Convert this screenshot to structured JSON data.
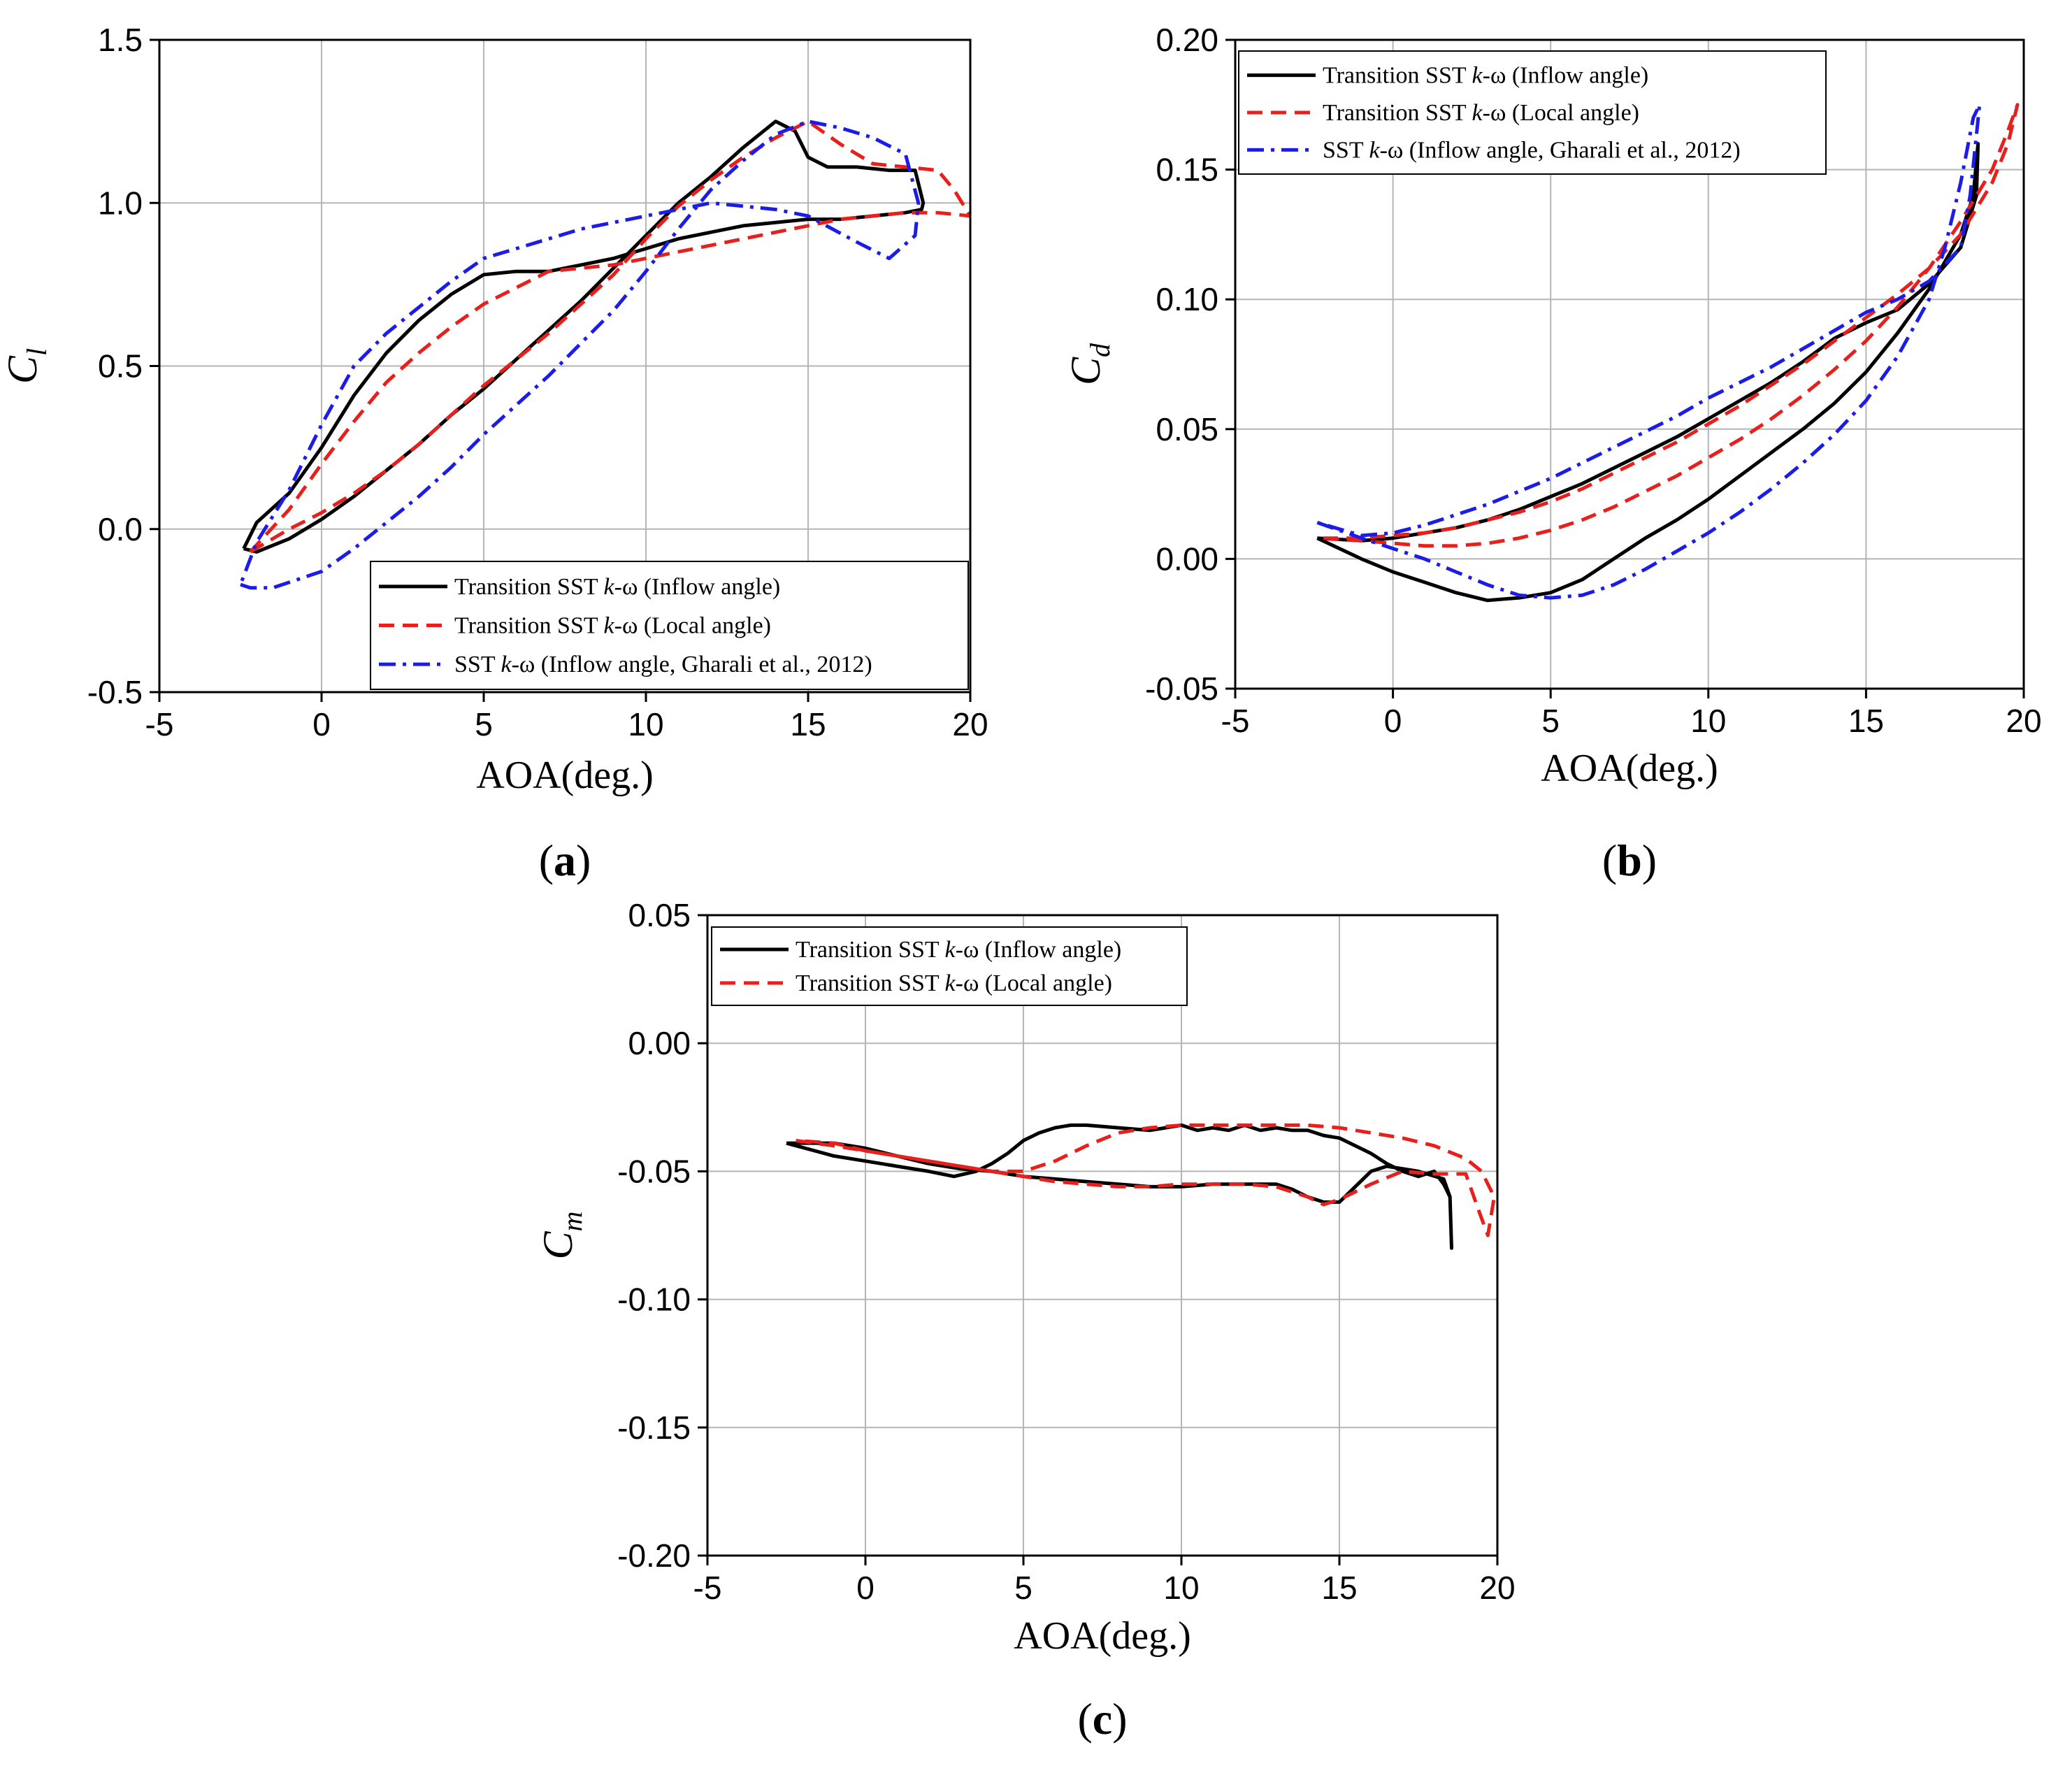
{
  "chart_data": [
    {
      "id": "a",
      "type": "line",
      "panel_label": "a",
      "xlabel": "AOA(deg.)",
      "ylabel": {
        "base": "C",
        "sub": "l"
      },
      "xlim": [
        -5,
        20
      ],
      "ylim": [
        -0.5,
        1.5
      ],
      "xticks": [
        -5,
        0,
        5,
        10,
        15,
        20
      ],
      "yticks": [
        -0.5,
        0.0,
        0.5,
        1.0,
        1.5
      ],
      "xtick_labels": [
        "-5",
        "0",
        "5",
        "10",
        "15",
        "20"
      ],
      "ytick_labels": [
        "-0.5",
        "0.0",
        "0.5",
        "1.0",
        "1.5"
      ],
      "grid": true,
      "legend_position": "bottom-right",
      "series": [
        {
          "name": "Transition SST k-ω (Inflow angle)",
          "legend": {
            "pre": "Transition SST ",
            "italic": "k",
            "post": "-ω (Inflow angle)"
          },
          "color": "#000000",
          "dash": "solid",
          "x": [
            -2.4,
            -2.0,
            -1.0,
            0.0,
            1.0,
            2.0,
            3.0,
            4.0,
            5.0,
            6.0,
            7.0,
            8.0,
            9.0,
            10.0,
            11.0,
            12.0,
            13.0,
            14.0,
            14.6,
            15.0,
            15.6,
            16.5,
            17.5,
            18.3,
            18.55,
            18.5,
            18.0,
            17.0,
            16.0,
            15.0,
            14.0,
            13.0,
            12.0,
            11.0,
            10.0,
            9.0,
            8.0,
            7.0,
            6.0,
            5.0,
            4.0,
            3.0,
            2.0,
            1.0,
            0.0,
            -1.0,
            -2.0,
            -2.4
          ],
          "y": [
            -0.06,
            -0.07,
            -0.03,
            0.03,
            0.1,
            0.18,
            0.26,
            0.35,
            0.43,
            0.52,
            0.61,
            0.7,
            0.8,
            0.9,
            1.0,
            1.08,
            1.17,
            1.25,
            1.22,
            1.14,
            1.11,
            1.11,
            1.1,
            1.1,
            1.0,
            0.98,
            0.97,
            0.96,
            0.95,
            0.95,
            0.94,
            0.93,
            0.91,
            0.89,
            0.86,
            0.83,
            0.81,
            0.79,
            0.79,
            0.78,
            0.72,
            0.64,
            0.54,
            0.41,
            0.25,
            0.11,
            0.02,
            -0.06
          ]
        },
        {
          "name": "Transition SST k-ω (Local angle)",
          "legend": {
            "pre": "Transition SST ",
            "italic": "k",
            "post": "-ω (Local angle)"
          },
          "color": "#e8201c",
          "dash": "dashed",
          "x": [
            -2.2,
            -1.0,
            0.0,
            1.0,
            2.0,
            3.0,
            4.0,
            5.0,
            6.0,
            7.0,
            8.0,
            9.0,
            10.0,
            11.0,
            12.0,
            13.0,
            14.0,
            15.0,
            16.0,
            17.0,
            18.0,
            19.0,
            19.5,
            20.0,
            19.0,
            18.0,
            17.0,
            16.0,
            15.0,
            14.0,
            13.0,
            12.0,
            11.0,
            10.0,
            9.0,
            8.0,
            7.0,
            6.0,
            5.0,
            4.0,
            3.0,
            2.0,
            1.0,
            0.0,
            -1.0,
            -2.2
          ],
          "y": [
            -0.07,
            0.0,
            0.05,
            0.11,
            0.18,
            0.26,
            0.35,
            0.44,
            0.52,
            0.6,
            0.69,
            0.78,
            0.89,
            0.99,
            1.07,
            1.14,
            1.2,
            1.25,
            1.18,
            1.12,
            1.11,
            1.1,
            1.04,
            0.96,
            0.97,
            0.97,
            0.96,
            0.95,
            0.93,
            0.91,
            0.89,
            0.87,
            0.85,
            0.83,
            0.81,
            0.8,
            0.79,
            0.74,
            0.69,
            0.62,
            0.54,
            0.45,
            0.33,
            0.2,
            0.06,
            -0.07
          ]
        },
        {
          "name": "SST k-ω (Inflow angle, Gharali et al., 2012)",
          "legend": {
            "pre": "SST ",
            "italic": "k",
            "post": "-ω (Inflow angle, Gharali et al., 2012)"
          },
          "color": "#1c1ce8",
          "dash": "dashdot",
          "x": [
            -2.5,
            -2.2,
            -1.5,
            0.0,
            1.0,
            2.0,
            3.0,
            4.0,
            5.0,
            6.0,
            7.0,
            8.0,
            9.0,
            10.0,
            11.0,
            12.0,
            13.0,
            14.0,
            15.0,
            16.0,
            17.0,
            18.0,
            18.4,
            18.3,
            17.5,
            16.5,
            15.0,
            14.0,
            13.0,
            12.0,
            11.0,
            10.0,
            9.0,
            8.0,
            7.0,
            6.0,
            5.0,
            4.0,
            3.0,
            2.0,
            1.0,
            0.0,
            -1.0,
            -2.0,
            -2.5
          ],
          "y": [
            -0.17,
            -0.18,
            -0.18,
            -0.13,
            -0.06,
            0.02,
            0.1,
            0.19,
            0.29,
            0.38,
            0.47,
            0.57,
            0.67,
            0.79,
            0.92,
            1.04,
            1.13,
            1.21,
            1.25,
            1.23,
            1.2,
            1.15,
            1.0,
            0.9,
            0.83,
            0.88,
            0.96,
            0.98,
            0.99,
            1.0,
            0.98,
            0.96,
            0.94,
            0.92,
            0.89,
            0.86,
            0.83,
            0.76,
            0.68,
            0.6,
            0.5,
            0.32,
            0.12,
            -0.04,
            -0.17
          ]
        }
      ]
    },
    {
      "id": "b",
      "type": "line",
      "panel_label": "b",
      "xlabel": "AOA(deg.)",
      "ylabel": {
        "base": "C",
        "sub": "d"
      },
      "xlim": [
        -5,
        20
      ],
      "ylim": [
        -0.05,
        0.2
      ],
      "xticks": [
        -5,
        0,
        5,
        10,
        15,
        20
      ],
      "yticks": [
        -0.05,
        0.0,
        0.05,
        0.1,
        0.15,
        0.2
      ],
      "xtick_labels": [
        "-5",
        "0",
        "5",
        "10",
        "15",
        "20"
      ],
      "ytick_labels": [
        "-0.05",
        "0.00",
        "0.05",
        "0.10",
        "0.15",
        "0.20"
      ],
      "grid": true,
      "legend_position": "top-left",
      "series": [
        {
          "name": "Transition SST k-ω (Inflow angle)",
          "legend": {
            "pre": "Transition SST ",
            "italic": "k",
            "post": "-ω (Inflow angle)"
          },
          "color": "#000000",
          "dash": "solid",
          "x": [
            -2.4,
            -1.0,
            0.0,
            1.0,
            2.0,
            3.0,
            4.0,
            5.0,
            6.0,
            7.0,
            8.0,
            9.0,
            10.0,
            11.0,
            12.0,
            13.0,
            14.0,
            15.0,
            16.0,
            17.0,
            18.0,
            18.4,
            18.55,
            18.5,
            18.0,
            17.0,
            16.0,
            15.0,
            14.0,
            13.0,
            12.0,
            11.0,
            10.0,
            9.0,
            8.0,
            7.0,
            6.0,
            5.0,
            4.0,
            3.0,
            2.0,
            1.0,
            0.0,
            -1.0,
            -2.4
          ],
          "y": [
            0.008,
            0.0,
            -0.005,
            -0.009,
            -0.013,
            -0.016,
            -0.015,
            -0.013,
            -0.008,
            0.0,
            0.008,
            0.015,
            0.023,
            0.032,
            0.041,
            0.05,
            0.06,
            0.072,
            0.087,
            0.104,
            0.125,
            0.14,
            0.16,
            0.14,
            0.12,
            0.106,
            0.096,
            0.091,
            0.085,
            0.076,
            0.068,
            0.061,
            0.054,
            0.047,
            0.041,
            0.035,
            0.029,
            0.024,
            0.019,
            0.015,
            0.012,
            0.01,
            0.008,
            0.007,
            0.008
          ]
        },
        {
          "name": "Transition SST k-ω (Local angle)",
          "legend": {
            "pre": "Transition SST ",
            "italic": "k",
            "post": "-ω (Local angle)"
          },
          "color": "#e8201c",
          "dash": "dashed",
          "x": [
            -2.2,
            -1.0,
            0.0,
            1.0,
            2.0,
            3.0,
            4.0,
            5.0,
            6.0,
            7.0,
            8.0,
            9.0,
            10.0,
            11.0,
            12.0,
            13.0,
            14.0,
            15.0,
            16.0,
            17.0,
            18.0,
            19.0,
            19.5,
            19.8,
            19.5,
            19.0,
            18.0,
            17.0,
            16.0,
            15.0,
            14.0,
            13.0,
            12.0,
            11.0,
            10.0,
            9.0,
            8.0,
            7.0,
            6.0,
            5.0,
            4.0,
            3.0,
            2.0,
            1.0,
            0.0,
            -1.0,
            -2.2
          ],
          "y": [
            0.008,
            0.007,
            0.006,
            0.005,
            0.005,
            0.006,
            0.008,
            0.011,
            0.015,
            0.02,
            0.026,
            0.032,
            0.039,
            0.046,
            0.054,
            0.063,
            0.073,
            0.084,
            0.097,
            0.112,
            0.13,
            0.15,
            0.165,
            0.175,
            0.16,
            0.145,
            0.125,
            0.112,
            0.102,
            0.093,
            0.084,
            0.075,
            0.067,
            0.059,
            0.052,
            0.045,
            0.039,
            0.033,
            0.027,
            0.022,
            0.018,
            0.015,
            0.012,
            0.01,
            0.009,
            0.008,
            0.008
          ]
        },
        {
          "name": "SST k-ω (Inflow angle, Gharali et al., 2012)",
          "legend": {
            "pre": "SST ",
            "italic": "k",
            "post": "-ω (Inflow angle, Gharali et al., 2012)"
          },
          "color": "#1c1ce8",
          "dash": "dashdot",
          "x": [
            -2.4,
            -1.0,
            0.0,
            1.0,
            2.0,
            3.0,
            4.0,
            5.0,
            6.0,
            7.0,
            8.0,
            9.0,
            10.0,
            11.0,
            12.0,
            13.0,
            14.0,
            15.0,
            16.0,
            17.0,
            17.5,
            18.0,
            18.4,
            18.6,
            18.3,
            18.0,
            17.0,
            16.0,
            15.0,
            14.0,
            13.0,
            12.0,
            11.0,
            10.0,
            9.0,
            8.0,
            7.0,
            6.0,
            5.0,
            4.0,
            3.0,
            2.0,
            1.0,
            0.0,
            -1.0,
            -2.4
          ],
          "y": [
            0.014,
            0.008,
            0.004,
            0.0,
            -0.005,
            -0.01,
            -0.014,
            -0.015,
            -0.014,
            -0.01,
            -0.004,
            0.003,
            0.01,
            0.018,
            0.027,
            0.037,
            0.048,
            0.061,
            0.078,
            0.1,
            0.12,
            0.145,
            0.17,
            0.175,
            0.14,
            0.12,
            0.107,
            0.1,
            0.095,
            0.088,
            0.081,
            0.074,
            0.068,
            0.062,
            0.055,
            0.049,
            0.043,
            0.037,
            0.031,
            0.026,
            0.021,
            0.017,
            0.013,
            0.01,
            0.009,
            0.014
          ]
        }
      ]
    },
    {
      "id": "c",
      "type": "line",
      "panel_label": "c",
      "xlabel": "AOA(deg.)",
      "ylabel": {
        "base": "C",
        "sub": "m"
      },
      "xlim": [
        -5,
        20
      ],
      "ylim": [
        -0.2,
        0.05
      ],
      "xticks": [
        -5,
        0,
        5,
        10,
        15,
        20
      ],
      "yticks": [
        -0.2,
        -0.15,
        -0.1,
        -0.05,
        0.0,
        0.05
      ],
      "xtick_labels": [
        "-5",
        "0",
        "5",
        "10",
        "15",
        "20"
      ],
      "ytick_labels": [
        "-0.20",
        "-0.15",
        "-0.10",
        "-0.05",
        "0.00",
        "0.05"
      ],
      "grid": true,
      "legend_position": "top-left",
      "series": [
        {
          "name": "Transition SST k-ω (Inflow angle)",
          "legend": {
            "pre": "Transition SST ",
            "italic": "k",
            "post": "-ω (Inflow angle)"
          },
          "color": "#000000",
          "dash": "solid",
          "x": [
            -2.5,
            -1.0,
            0.0,
            1.0,
            2.0,
            2.8,
            3.5,
            4.0,
            4.5,
            5.0,
            5.5,
            6.0,
            6.5,
            7.0,
            8.0,
            9.0,
            10.0,
            10.5,
            11.0,
            11.5,
            12.0,
            12.5,
            13.0,
            13.5,
            14.0,
            14.5,
            15.0,
            15.5,
            16.0,
            16.5,
            17.0,
            17.5,
            18.0,
            18.3,
            18.5,
            18.55,
            18.5,
            18.3,
            17.5,
            16.5,
            16.0,
            15.5,
            15.0,
            14.5,
            14.0,
            13.5,
            13.0,
            12.0,
            11.0,
            10.0,
            9.0,
            8.0,
            7.0,
            6.0,
            5.0,
            4.0,
            3.0,
            2.0,
            1.0,
            0.0,
            -1.0,
            -2.5
          ],
          "y": [
            -0.039,
            -0.044,
            -0.046,
            -0.048,
            -0.05,
            -0.052,
            -0.05,
            -0.047,
            -0.043,
            -0.038,
            -0.035,
            -0.033,
            -0.032,
            -0.032,
            -0.033,
            -0.034,
            -0.032,
            -0.034,
            -0.033,
            -0.034,
            -0.032,
            -0.034,
            -0.033,
            -0.034,
            -0.034,
            -0.036,
            -0.037,
            -0.04,
            -0.043,
            -0.047,
            -0.05,
            -0.052,
            -0.05,
            -0.055,
            -0.06,
            -0.08,
            -0.06,
            -0.053,
            -0.05,
            -0.048,
            -0.05,
            -0.056,
            -0.062,
            -0.062,
            -0.06,
            -0.057,
            -0.055,
            -0.055,
            -0.055,
            -0.056,
            -0.056,
            -0.055,
            -0.054,
            -0.053,
            -0.052,
            -0.05,
            -0.049,
            -0.047,
            -0.044,
            -0.041,
            -0.039,
            -0.039
          ]
        },
        {
          "name": "Transition SST k-ω (Local angle)",
          "legend": {
            "pre": "Transition SST ",
            "italic": "k",
            "post": "-ω (Local angle)"
          },
          "color": "#e8201c",
          "dash": "dashed",
          "x": [
            -2.2,
            -1.0,
            0.0,
            1.0,
            2.0,
            3.0,
            4.0,
            5.0,
            6.0,
            7.0,
            8.0,
            9.0,
            10.0,
            11.0,
            12.0,
            13.0,
            14.0,
            15.0,
            16.0,
            17.0,
            18.0,
            19.0,
            19.5,
            19.9,
            19.7,
            19.4,
            19.0,
            18.0,
            17.0,
            16.0,
            15.0,
            14.5,
            14.0,
            13.0,
            12.0,
            11.0,
            10.0,
            9.0,
            8.0,
            7.0,
            6.0,
            5.0,
            4.0,
            3.0,
            2.0,
            1.0,
            0.0,
            -1.0,
            -2.2
          ],
          "y": [
            -0.038,
            -0.04,
            -0.042,
            -0.044,
            -0.046,
            -0.048,
            -0.05,
            -0.05,
            -0.046,
            -0.04,
            -0.035,
            -0.033,
            -0.032,
            -0.032,
            -0.032,
            -0.032,
            -0.032,
            -0.033,
            -0.035,
            -0.037,
            -0.04,
            -0.045,
            -0.05,
            -0.06,
            -0.075,
            -0.065,
            -0.051,
            -0.051,
            -0.05,
            -0.055,
            -0.061,
            -0.063,
            -0.06,
            -0.056,
            -0.055,
            -0.055,
            -0.055,
            -0.056,
            -0.056,
            -0.055,
            -0.054,
            -0.052,
            -0.05,
            -0.048,
            -0.046,
            -0.044,
            -0.042,
            -0.039,
            -0.038
          ]
        }
      ]
    }
  ]
}
